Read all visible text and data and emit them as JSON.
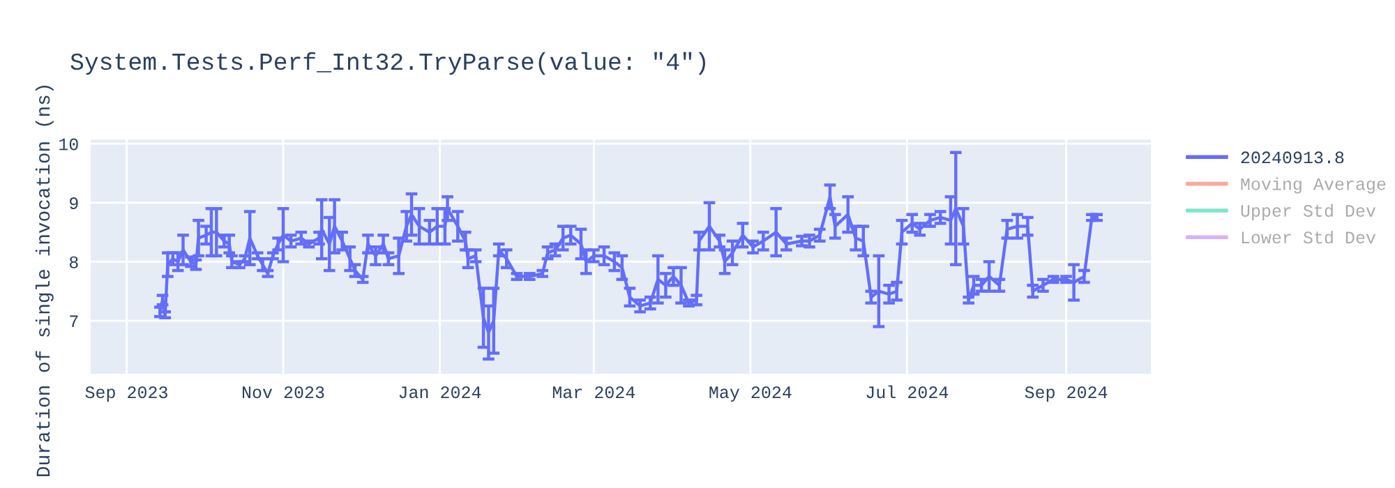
{
  "chart_data": {
    "type": "line",
    "title": "System.Tests.Perf_Int32.TryParse(value: \"4\")",
    "ylabel": "Duration of single invocation (ns)",
    "xlim": [
      "2023-08-18",
      "2024-10-04"
    ],
    "xticks": [
      {
        "value": "2023-09-01",
        "label": "Sep 2023"
      },
      {
        "value": "2023-11-01",
        "label": "Nov 2023"
      },
      {
        "value": "2024-01-01",
        "label": "Jan 2024"
      },
      {
        "value": "2024-03-01",
        "label": "Mar 2024"
      },
      {
        "value": "2024-05-01",
        "label": "May 2024"
      },
      {
        "value": "2024-07-01",
        "label": "Jul 2024"
      },
      {
        "value": "2024-09-01",
        "label": "Sep 2024"
      }
    ],
    "ylim": [
      6.1,
      10.07
    ],
    "yticks": [
      7,
      8,
      9,
      10
    ],
    "grid": true,
    "legend": "top right",
    "marker": "none",
    "line_style": "solid",
    "series": [
      {
        "name": "20240913.8",
        "color": "#636efa",
        "x": [
          "2023-09-14",
          "2023-09-15",
          "2023-09-16",
          "2023-09-17",
          "2023-09-19",
          "2023-09-21",
          "2023-09-23",
          "2023-09-26",
          "2023-09-28",
          "2023-09-29",
          "2023-10-02",
          "2023-10-04",
          "2023-10-06",
          "2023-10-09",
          "2023-10-11",
          "2023-10-12",
          "2023-10-15",
          "2023-10-17",
          "2023-10-19",
          "2023-10-22",
          "2023-10-24",
          "2023-10-26",
          "2023-10-28",
          "2023-10-30",
          "2023-11-01",
          "2023-11-04",
          "2023-11-08",
          "2023-11-11",
          "2023-11-15",
          "2023-11-16",
          "2023-11-19",
          "2023-11-21",
          "2023-11-24",
          "2023-11-27",
          "2023-11-29",
          "2023-12-02",
          "2023-12-04",
          "2023-12-07",
          "2023-12-10",
          "2023-12-12",
          "2023-12-16",
          "2023-12-19",
          "2023-12-21",
          "2023-12-24",
          "2023-12-28",
          "2023-12-31",
          "2024-01-03",
          "2024-01-04",
          "2024-01-08",
          "2024-01-11",
          "2024-01-12",
          "2024-01-15",
          "2024-01-18",
          "2024-01-20",
          "2024-01-22",
          "2024-01-24",
          "2024-01-27",
          "2024-01-31",
          "2024-02-05",
          "2024-02-10",
          "2024-02-12",
          "2024-02-15",
          "2024-02-18",
          "2024-02-21",
          "2024-02-25",
          "2024-02-27",
          "2024-03-01",
          "2024-03-05",
          "2024-03-09",
          "2024-03-12",
          "2024-03-15",
          "2024-03-19",
          "2024-03-23",
          "2024-03-26",
          "2024-03-29",
          "2024-04-01",
          "2024-04-04",
          "2024-04-07",
          "2024-04-10",
          "2024-04-11",
          "2024-04-15",
          "2024-04-19",
          "2024-04-21",
          "2024-04-24",
          "2024-04-28",
          "2024-05-02",
          "2024-05-06",
          "2024-05-11",
          "2024-05-15",
          "2024-05-21",
          "2024-05-24",
          "2024-05-28",
          "2024-06-01",
          "2024-06-03",
          "2024-06-08",
          "2024-06-11",
          "2024-06-14",
          "2024-06-17",
          "2024-06-20",
          "2024-06-24",
          "2024-06-27",
          "2024-06-29",
          "2024-07-03",
          "2024-07-06",
          "2024-07-10",
          "2024-07-14",
          "2024-07-18",
          "2024-07-20",
          "2024-07-23",
          "2024-07-25",
          "2024-07-27",
          "2024-07-30",
          "2024-08-02",
          "2024-08-06",
          "2024-08-09",
          "2024-08-13",
          "2024-08-17",
          "2024-08-19",
          "2024-08-23",
          "2024-08-27",
          "2024-09-01",
          "2024-09-04",
          "2024-09-08",
          "2024-09-11",
          "2024-09-13"
        ],
        "values": [
          7.15,
          7.35,
          7.1,
          7.95,
          8.05,
          8.0,
          8.2,
          8.0,
          7.95,
          8.4,
          8.45,
          8.5,
          8.5,
          8.35,
          8.3,
          8.0,
          7.95,
          8.05,
          8.4,
          8.1,
          7.95,
          7.8,
          8.1,
          8.3,
          8.45,
          8.35,
          8.4,
          8.3,
          8.4,
          8.55,
          8.3,
          8.6,
          8.35,
          8.05,
          7.85,
          7.7,
          8.3,
          8.1,
          8.3,
          8.05,
          8.1,
          8.6,
          8.8,
          8.6,
          8.5,
          8.6,
          8.6,
          8.9,
          8.6,
          8.35,
          8.05,
          8.1,
          7.05,
          6.8,
          7.0,
          8.2,
          8.05,
          7.75,
          7.75,
          7.8,
          8.15,
          8.2,
          8.4,
          8.45,
          8.3,
          8.0,
          8.1,
          8.1,
          8.0,
          7.9,
          7.4,
          7.25,
          7.3,
          7.7,
          7.6,
          7.75,
          7.6,
          7.3,
          7.35,
          8.35,
          8.6,
          8.35,
          8.0,
          8.15,
          8.45,
          8.25,
          8.35,
          8.5,
          8.3,
          8.35,
          8.35,
          8.45,
          9.1,
          8.6,
          8.8,
          8.4,
          8.35,
          7.4,
          7.5,
          7.45,
          7.5,
          8.5,
          8.65,
          8.55,
          8.7,
          8.75,
          8.7,
          8.9,
          8.6,
          7.35,
          7.6,
          7.6,
          7.75,
          7.6,
          8.55,
          8.6,
          8.6,
          7.5,
          7.6,
          7.7,
          7.7,
          7.65,
          7.75,
          8.75,
          8.75
        ],
        "errors": [
          0.08,
          0.08,
          0.05,
          0.2,
          0.1,
          0.15,
          0.25,
          0.08,
          0.08,
          0.3,
          0.15,
          0.4,
          0.4,
          0.1,
          0.15,
          0.1,
          0.05,
          0.05,
          0.45,
          0.05,
          0.1,
          0.05,
          0.05,
          0.1,
          0.45,
          0.1,
          0.1,
          0.05,
          0.1,
          0.5,
          0.45,
          0.45,
          0.15,
          0.2,
          0.1,
          0.05,
          0.15,
          0.15,
          0.15,
          0.1,
          0.3,
          0.25,
          0.35,
          0.3,
          0.2,
          0.3,
          0.3,
          0.2,
          0.25,
          0.15,
          0.15,
          0.1,
          0.5,
          0.45,
          0.55,
          0.1,
          0.15,
          0.05,
          0.05,
          0.05,
          0.1,
          0.1,
          0.2,
          0.15,
          0.25,
          0.2,
          0.1,
          0.15,
          0.15,
          0.2,
          0.15,
          0.1,
          0.1,
          0.4,
          0.2,
          0.15,
          0.3,
          0.05,
          0.08,
          0.15,
          0.4,
          0.1,
          0.2,
          0.2,
          0.2,
          0.1,
          0.15,
          0.4,
          0.1,
          0.08,
          0.1,
          0.1,
          0.2,
          0.2,
          0.3,
          0.2,
          0.25,
          0.1,
          0.6,
          0.15,
          0.15,
          0.2,
          0.15,
          0.1,
          0.1,
          0.1,
          0.4,
          0.95,
          0.3,
          0.05,
          0.15,
          0.1,
          0.25,
          0.1,
          0.15,
          0.2,
          0.15,
          0.1,
          0.1,
          0.05,
          0.05,
          0.3,
          0.1,
          0.05,
          0.05
        ]
      },
      {
        "name": "Moving Average",
        "color": "#ef553b"
      },
      {
        "name": "Upper Std Dev",
        "color": "#00cc96"
      },
      {
        "name": "Lower Std Dev",
        "color": "#ab63fa"
      }
    ]
  }
}
